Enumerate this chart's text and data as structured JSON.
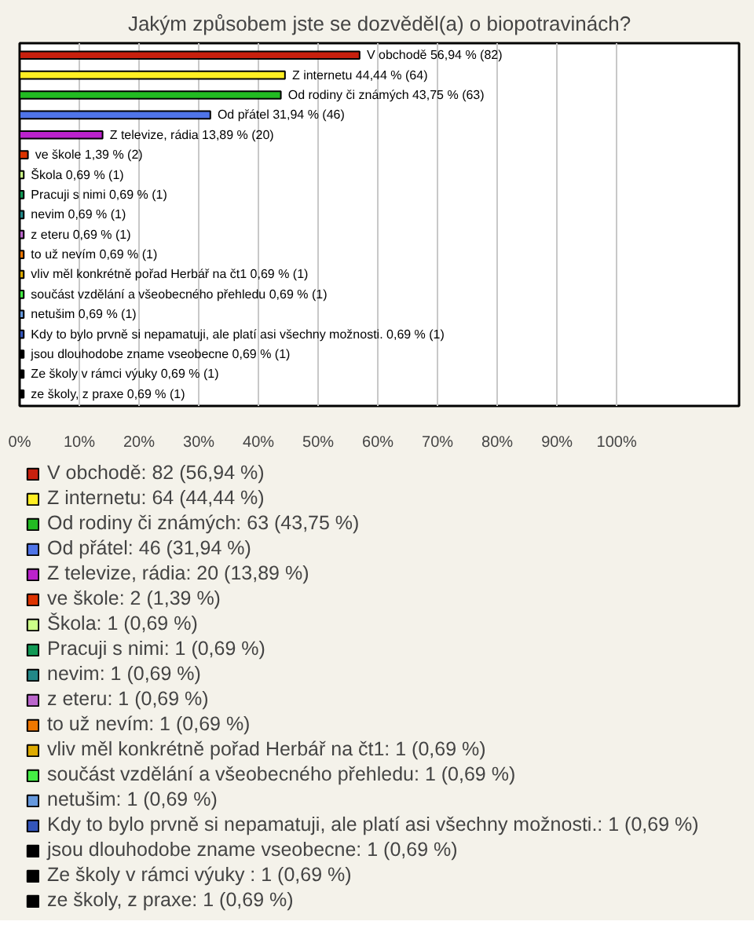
{
  "chart_data": {
    "type": "bar",
    "orientation": "horizontal",
    "title": "Jakým způsobem jste se dozvěděl(a) o biopotravinách?",
    "categories": [
      "V obchodě",
      "Z internetu",
      "Od rodiny či známých",
      "Od přátel",
      "Z televize, rádia",
      "ve škole",
      "Škola",
      "Pracuji s nimi",
      "nevim",
      "z eteru",
      "to už nevím",
      "vliv měl konkrétně pořad Herbář na čt1",
      "součást vzdělání a všeobecného přehledu",
      "netušim",
      "Kdy to bylo prvně si nepamatuji, ale platí asi všechny možnosti.",
      "jsou dlouhodobe zname vseobecne",
      "Ze školy v rámci výuky ",
      "ze školy, z praxe"
    ],
    "series": [
      {
        "name": "V obchodě: 82 (56,94 %)",
        "color": "#c8200e",
        "values": [
          56.94,
          null,
          null,
          null,
          null,
          null,
          null,
          null,
          null,
          null,
          null,
          null,
          null,
          null,
          null,
          null,
          null,
          null
        ],
        "value_labels": [
          "56,94 % (82)",
          null,
          null,
          null,
          null,
          null,
          null,
          null,
          null,
          null,
          null,
          null,
          null,
          null,
          null,
          null,
          null,
          null
        ]
      },
      {
        "name": "Z internetu: 64 (44,44 %)",
        "color": "#ffee22",
        "values": [
          null,
          44.44,
          null,
          null,
          null,
          null,
          null,
          null,
          null,
          null,
          null,
          null,
          null,
          null,
          null,
          null,
          null,
          null
        ],
        "value_labels": [
          null,
          "44,44 % (64)",
          null,
          null,
          null,
          null,
          null,
          null,
          null,
          null,
          null,
          null,
          null,
          null,
          null,
          null,
          null,
          null
        ]
      },
      {
        "name": "Od rodiny či známých: 63 (43,75 %)",
        "color": "#22bb22",
        "values": [
          null,
          null,
          43.75,
          null,
          null,
          null,
          null,
          null,
          null,
          null,
          null,
          null,
          null,
          null,
          null,
          null,
          null,
          null
        ],
        "value_labels": [
          null,
          null,
          "43,75 % (63)",
          null,
          null,
          null,
          null,
          null,
          null,
          null,
          null,
          null,
          null,
          null,
          null,
          null,
          null,
          null
        ]
      },
      {
        "name": "Od přátel: 46 (31,94 %)",
        "color": "#4f74e8",
        "values": [
          null,
          null,
          null,
          31.94,
          null,
          null,
          null,
          null,
          null,
          null,
          null,
          null,
          null,
          null,
          null,
          null,
          null,
          null
        ],
        "value_labels": [
          null,
          null,
          null,
          "31,94 % (46)",
          null,
          null,
          null,
          null,
          null,
          null,
          null,
          null,
          null,
          null,
          null,
          null,
          null,
          null
        ]
      },
      {
        "name": "Z televize, rádia: 20 (13,89 %)",
        "color": "#bb22cc",
        "values": [
          null,
          null,
          null,
          null,
          13.89,
          null,
          null,
          null,
          null,
          null,
          null,
          null,
          null,
          null,
          null,
          null,
          null,
          null
        ],
        "value_labels": [
          null,
          null,
          null,
          null,
          "13,89 % (20)",
          null,
          null,
          null,
          null,
          null,
          null,
          null,
          null,
          null,
          null,
          null,
          null,
          null
        ]
      },
      {
        "name": "ve škole: 2 (1,39 %)",
        "color": "#dd3300",
        "values": [
          null,
          null,
          null,
          null,
          null,
          1.39,
          null,
          null,
          null,
          null,
          null,
          null,
          null,
          null,
          null,
          null,
          null,
          null
        ],
        "value_labels": [
          null,
          null,
          null,
          null,
          null,
          "1,39 % (2)",
          null,
          null,
          null,
          null,
          null,
          null,
          null,
          null,
          null,
          null,
          null,
          null
        ]
      },
      {
        "name": "Škola: 1 (0,69 %)",
        "color": "#ccff88",
        "values": [
          null,
          null,
          null,
          null,
          null,
          null,
          0.69,
          null,
          null,
          null,
          null,
          null,
          null,
          null,
          null,
          null,
          null,
          null
        ],
        "value_labels": [
          null,
          null,
          null,
          null,
          null,
          null,
          "0,69 % (1)",
          null,
          null,
          null,
          null,
          null,
          null,
          null,
          null,
          null,
          null,
          null
        ]
      },
      {
        "name": "Pracuji s nimi: 1 (0,69 %)",
        "color": "#119955",
        "values": [
          null,
          null,
          null,
          null,
          null,
          null,
          null,
          0.69,
          null,
          null,
          null,
          null,
          null,
          null,
          null,
          null,
          null,
          null
        ],
        "value_labels": [
          null,
          null,
          null,
          null,
          null,
          null,
          null,
          "0,69 % (1)",
          null,
          null,
          null,
          null,
          null,
          null,
          null,
          null,
          null,
          null
        ]
      },
      {
        "name": "nevim: 1 (0,69 %)",
        "color": "#228888",
        "values": [
          null,
          null,
          null,
          null,
          null,
          null,
          null,
          null,
          0.69,
          null,
          null,
          null,
          null,
          null,
          null,
          null,
          null,
          null
        ],
        "value_labels": [
          null,
          null,
          null,
          null,
          null,
          null,
          null,
          null,
          "0,69 % (1)",
          null,
          null,
          null,
          null,
          null,
          null,
          null,
          null,
          null
        ]
      },
      {
        "name": "z eteru: 1 (0,69 %)",
        "color": "#bb66cc",
        "values": [
          null,
          null,
          null,
          null,
          null,
          null,
          null,
          null,
          null,
          0.69,
          null,
          null,
          null,
          null,
          null,
          null,
          null,
          null
        ],
        "value_labels": [
          null,
          null,
          null,
          null,
          null,
          null,
          null,
          null,
          null,
          "0,69 % (1)",
          null,
          null,
          null,
          null,
          null,
          null,
          null,
          null
        ]
      },
      {
        "name": "to už nevím: 1 (0,69 %)",
        "color": "#ee7700",
        "values": [
          null,
          null,
          null,
          null,
          null,
          null,
          null,
          null,
          null,
          null,
          0.69,
          null,
          null,
          null,
          null,
          null,
          null,
          null
        ],
        "value_labels": [
          null,
          null,
          null,
          null,
          null,
          null,
          null,
          null,
          null,
          null,
          "0,69 % (1)",
          null,
          null,
          null,
          null,
          null,
          null,
          null
        ]
      },
      {
        "name": "vliv měl konkrétně pořad Herbář na čt1: 1 (0,69 %)",
        "color": "#ddaa00",
        "values": [
          null,
          null,
          null,
          null,
          null,
          null,
          null,
          null,
          null,
          null,
          null,
          0.69,
          null,
          null,
          null,
          null,
          null,
          null
        ],
        "value_labels": [
          null,
          null,
          null,
          null,
          null,
          null,
          null,
          null,
          null,
          null,
          null,
          "0,69 % (1)",
          null,
          null,
          null,
          null,
          null,
          null
        ]
      },
      {
        "name": "součást vzdělání a všeobecného přehledu: 1 (0,69 %)",
        "color": "#44ee44",
        "values": [
          null,
          null,
          null,
          null,
          null,
          null,
          null,
          null,
          null,
          null,
          null,
          null,
          0.69,
          null,
          null,
          null,
          null,
          null
        ],
        "value_labels": [
          null,
          null,
          null,
          null,
          null,
          null,
          null,
          null,
          null,
          null,
          null,
          null,
          "0,69 % (1)",
          null,
          null,
          null,
          null,
          null
        ]
      },
      {
        "name": "netušim: 1 (0,69 %)",
        "color": "#6699dd",
        "values": [
          null,
          null,
          null,
          null,
          null,
          null,
          null,
          null,
          null,
          null,
          null,
          null,
          null,
          0.69,
          null,
          null,
          null,
          null
        ],
        "value_labels": [
          null,
          null,
          null,
          null,
          null,
          null,
          null,
          null,
          null,
          null,
          null,
          null,
          null,
          "0,69 % (1)",
          null,
          null,
          null,
          null
        ]
      },
      {
        "name": "Kdy to bylo prvně si nepamatuji, ale platí asi všechny možnosti.: 1 (0,69 %)",
        "color": "#3355bb",
        "values": [
          null,
          null,
          null,
          null,
          null,
          null,
          null,
          null,
          null,
          null,
          null,
          null,
          null,
          null,
          0.69,
          null,
          null,
          null
        ],
        "value_labels": [
          null,
          null,
          null,
          null,
          null,
          null,
          null,
          null,
          null,
          null,
          null,
          null,
          null,
          null,
          "0,69 % (1)",
          null,
          null,
          null
        ]
      },
      {
        "name": "jsou dlouhodobe zname vseobecne: 1 (0,69 %)",
        "color": "#000000",
        "values": [
          null,
          null,
          null,
          null,
          null,
          null,
          null,
          null,
          null,
          null,
          null,
          null,
          null,
          null,
          null,
          0.69,
          null,
          null
        ],
        "value_labels": [
          null,
          null,
          null,
          null,
          null,
          null,
          null,
          null,
          null,
          null,
          null,
          null,
          null,
          null,
          null,
          "0,69 % (1)",
          null,
          null
        ]
      },
      {
        "name": "Ze školy v rámci výuky : 1 (0,69 %)",
        "color": "#000000",
        "values": [
          null,
          null,
          null,
          null,
          null,
          null,
          null,
          null,
          null,
          null,
          null,
          null,
          null,
          null,
          null,
          null,
          0.69,
          null
        ],
        "value_labels": [
          null,
          null,
          null,
          null,
          null,
          null,
          null,
          null,
          null,
          null,
          null,
          null,
          null,
          null,
          null,
          null,
          "0,69 % (1)",
          null
        ]
      },
      {
        "name": "ze školy, z praxe: 1 (0,69 %)",
        "color": "#000000",
        "values": [
          null,
          null,
          null,
          null,
          null,
          null,
          null,
          null,
          null,
          null,
          null,
          null,
          null,
          null,
          null,
          null,
          null,
          0.69
        ],
        "value_labels": [
          null,
          null,
          null,
          null,
          null,
          null,
          null,
          null,
          null,
          null,
          null,
          null,
          null,
          null,
          null,
          null,
          null,
          "0,69 % (1)"
        ]
      }
    ],
    "xlim": [
      0,
      120.5
    ],
    "xticks": [
      {
        "value": 0,
        "label": "0%"
      },
      {
        "value": 10,
        "label": "10%"
      },
      {
        "value": 20,
        "label": "20%"
      },
      {
        "value": 30,
        "label": "30%"
      },
      {
        "value": 40,
        "label": "40%"
      },
      {
        "value": 50,
        "label": "50%"
      },
      {
        "value": 60,
        "label": "60%"
      },
      {
        "value": 70,
        "label": "70%"
      },
      {
        "value": 80,
        "label": "80%"
      },
      {
        "value": 90,
        "label": "90%"
      },
      {
        "value": 100,
        "label": "100%"
      }
    ],
    "grid": "x",
    "legend": "bottom"
  }
}
